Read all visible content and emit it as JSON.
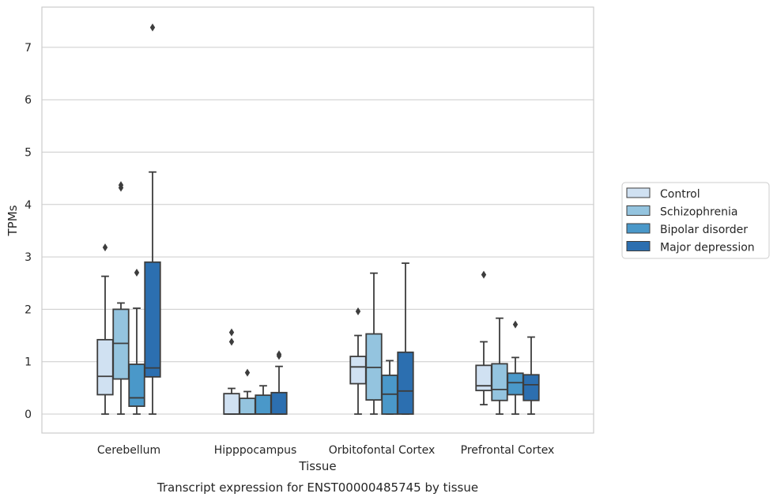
{
  "chart_data": {
    "type": "boxplot",
    "title": "",
    "caption": "Transcript expression for ENST00000485745 by tissue",
    "xlabel": "Tissue",
    "ylabel": "TPMs",
    "ylim": [
      -0.35,
      7.75
    ],
    "yticks": [
      0,
      1,
      2,
      3,
      4,
      5,
      6,
      7
    ],
    "grid": "horizontal",
    "legend_position": "right",
    "categories": [
      "Cerebellum",
      "Hipppocampus",
      "Orbitofontal Cortex",
      "Prefrontal Cortex"
    ],
    "series": [
      {
        "name": "Control",
        "color": "#d0e1f2",
        "boxes": [
          {
            "whisker_low": 0,
            "q1": 0.37,
            "median": 0.72,
            "q3": 1.42,
            "whisker_high": 2.63,
            "outliers": [
              3.18
            ]
          },
          {
            "whisker_low": 0,
            "q1": 0,
            "median": 0,
            "q3": 0.39,
            "whisker_high": 0.49,
            "outliers": [
              1.38,
              1.56
            ]
          },
          {
            "whisker_low": 0,
            "q1": 0.58,
            "median": 0.9,
            "q3": 1.1,
            "whisker_high": 1.5,
            "outliers": [
              1.96
            ]
          },
          {
            "whisker_low": 0.18,
            "q1": 0.45,
            "median": 0.54,
            "q3": 0.93,
            "whisker_high": 1.38,
            "outliers": [
              2.66
            ]
          }
        ]
      },
      {
        "name": "Schizophrenia",
        "color": "#94c4df",
        "boxes": [
          {
            "whisker_low": 0,
            "q1": 0.67,
            "median": 1.35,
            "q3": 2.0,
            "whisker_high": 2.12,
            "outliers": [
              4.32,
              4.37
            ]
          },
          {
            "whisker_low": 0,
            "q1": 0,
            "median": 0,
            "q3": 0.3,
            "whisker_high": 0.43,
            "outliers": [
              0.79
            ]
          },
          {
            "whisker_low": 0,
            "q1": 0.27,
            "median": 0.89,
            "q3": 1.53,
            "whisker_high": 2.69,
            "outliers": []
          },
          {
            "whisker_low": 0,
            "q1": 0.26,
            "median": 0.47,
            "q3": 0.96,
            "whisker_high": 1.83,
            "outliers": []
          }
        ]
      },
      {
        "name": "Bipolar disorder",
        "color": "#4a98c9",
        "boxes": [
          {
            "whisker_low": 0,
            "q1": 0.15,
            "median": 0.31,
            "q3": 0.95,
            "whisker_high": 2.02,
            "outliers": [
              2.7
            ]
          },
          {
            "whisker_low": 0,
            "q1": 0,
            "median": 0,
            "q3": 0.36,
            "whisker_high": 0.54,
            "outliers": []
          },
          {
            "whisker_low": 0,
            "q1": 0,
            "median": 0.38,
            "q3": 0.74,
            "whisker_high": 1.02,
            "outliers": []
          },
          {
            "whisker_low": 0,
            "q1": 0.37,
            "median": 0.6,
            "q3": 0.78,
            "whisker_high": 1.08,
            "outliers": [
              1.71
            ]
          }
        ]
      },
      {
        "name": "Major depression",
        "color": "#2c6fb0",
        "boxes": [
          {
            "whisker_low": 0,
            "q1": 0.71,
            "median": 0.88,
            "q3": 2.9,
            "whisker_high": 4.62,
            "outliers": [
              7.38
            ]
          },
          {
            "whisker_low": 0,
            "q1": 0,
            "median": 0,
            "q3": 0.41,
            "whisker_high": 0.91,
            "outliers": [
              1.11,
              1.14
            ]
          },
          {
            "whisker_low": 0,
            "q1": 0,
            "median": 0.44,
            "q3": 1.18,
            "whisker_high": 2.88,
            "outliers": []
          },
          {
            "whisker_low": 0,
            "q1": 0.26,
            "median": 0.56,
            "q3": 0.75,
            "whisker_high": 1.47,
            "outliers": []
          }
        ]
      }
    ]
  }
}
